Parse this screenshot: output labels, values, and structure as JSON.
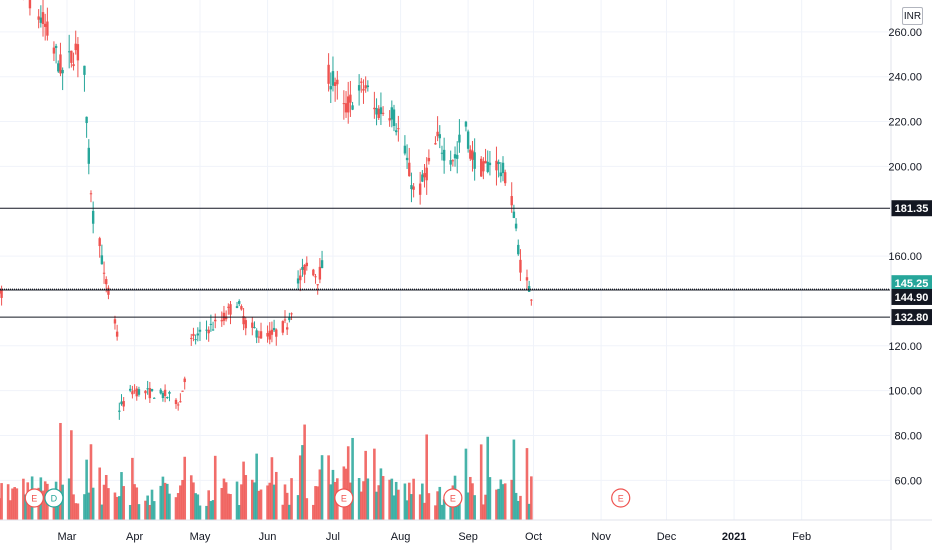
{
  "currency": "INR",
  "chart_data": {
    "type": "candlestick",
    "x_ticks": [
      "Mar",
      "Apr",
      "May",
      "Jun",
      "Jul",
      "Aug",
      "Sep",
      "Oct",
      "Nov",
      "Dec",
      "2021",
      "Feb"
    ],
    "y_ticks": [
      "60.00",
      "80.00",
      "100.00",
      "120.00",
      "160.00",
      "200.00",
      "220.00",
      "240.00",
      "260.00"
    ],
    "ylim": [
      40,
      265
    ],
    "grid": true,
    "horizontal_lines": [
      {
        "value": 181.35,
        "label": "181.35",
        "badge": "#131722"
      },
      {
        "value": 145.25,
        "label": "145.25",
        "badge": "#26a69a"
      },
      {
        "value": 144.9,
        "label": "144.90",
        "badge": "#131722"
      },
      {
        "value": 132.8,
        "label": "132.80",
        "badge": "#131722"
      }
    ],
    "event_markers": [
      {
        "label": "E",
        "date": "2020-02-15",
        "color": "#ef5350"
      },
      {
        "label": "D",
        "date": "2020-02-24",
        "color": "#26a69a"
      },
      {
        "label": "E",
        "date": "2020-07-06",
        "color": "#ef5350"
      },
      {
        "label": "E",
        "date": "2020-08-25",
        "color": "#ef5350"
      },
      {
        "label": "E",
        "date": "2020-11-10",
        "color": "#ef5350"
      }
    ],
    "colors": {
      "up": "#26a69a",
      "down": "#ef5350",
      "grid": "#f0f3fa",
      "level_line": "#131722"
    }
  }
}
